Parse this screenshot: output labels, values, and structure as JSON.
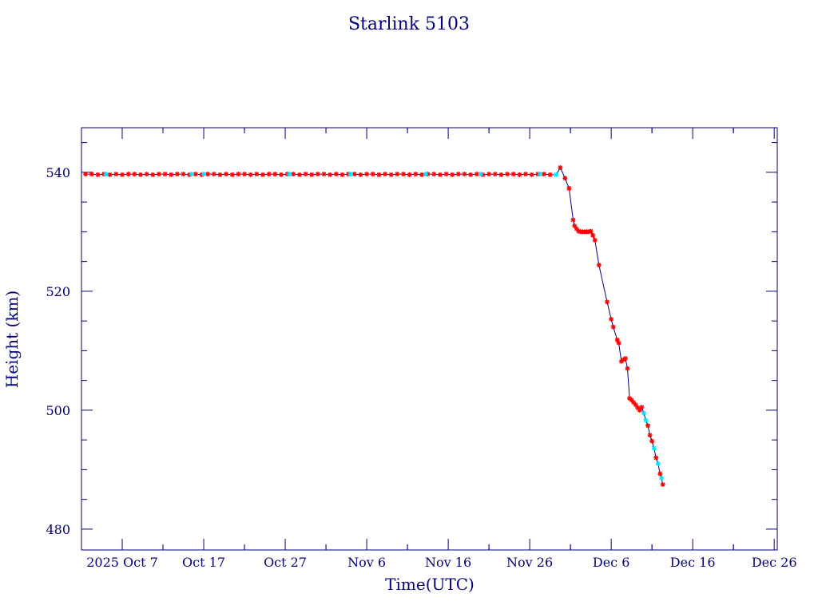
{
  "chart_data": {
    "type": "scatter",
    "title": "Starlink 5103",
    "xlabel": "Time(UTC)",
    "ylabel": "Height (km)",
    "xlim": [
      "2025-10-02",
      "2025-12-26T09:00"
    ],
    "ylim": [
      476.5,
      547.5
    ],
    "grid": false,
    "x_ticks": [
      {
        "date": "2025-10-07",
        "label": "2025 Oct  7"
      },
      {
        "date": "2025-10-17",
        "label": "Oct 17"
      },
      {
        "date": "2025-10-27",
        "label": "Oct 27"
      },
      {
        "date": "2025-11-06",
        "label": "Nov  6"
      },
      {
        "date": "2025-11-16",
        "label": "Nov 16"
      },
      {
        "date": "2025-11-26",
        "label": "Nov 26"
      },
      {
        "date": "2025-12-06",
        "label": "Dec  6"
      },
      {
        "date": "2025-12-16",
        "label": "Dec 16"
      },
      {
        "date": "2025-12-26",
        "label": "Dec 26"
      }
    ],
    "y_ticks": [
      {
        "value": 480,
        "label": "480"
      },
      {
        "value": 500,
        "label": "500"
      },
      {
        "value": 520,
        "label": "520"
      },
      {
        "value": 540,
        "label": "540"
      }
    ],
    "colors": {
      "frame": "#000080",
      "line": "#000080",
      "red_markers": "#ff0000",
      "cyan_markers": "#00e5ff"
    },
    "series": [
      {
        "color": "red",
        "marker": "star",
        "points": [
          {
            "t": "2025-10-02T12:00",
            "h": 539.7
          },
          {
            "t": "2025-10-03T06:00",
            "h": 539.7
          },
          {
            "t": "2025-10-04T00:00",
            "h": 539.6
          },
          {
            "t": "2025-10-04T18:00",
            "h": 539.7
          },
          {
            "t": "2025-10-05T12:00",
            "h": 539.6
          },
          {
            "t": "2025-10-06T06:00",
            "h": 539.7
          },
          {
            "t": "2025-10-07T00:00",
            "h": 539.6
          },
          {
            "t": "2025-10-07T18:00",
            "h": 539.7
          },
          {
            "t": "2025-10-08T12:00",
            "h": 539.7
          },
          {
            "t": "2025-10-09T06:00",
            "h": 539.6
          },
          {
            "t": "2025-10-10T00:00",
            "h": 539.7
          },
          {
            "t": "2025-10-10T18:00",
            "h": 539.6
          },
          {
            "t": "2025-10-11T12:00",
            "h": 539.7
          },
          {
            "t": "2025-10-12T06:00",
            "h": 539.7
          },
          {
            "t": "2025-10-13T00:00",
            "h": 539.6
          },
          {
            "t": "2025-10-13T18:00",
            "h": 539.7
          },
          {
            "t": "2025-10-14T12:00",
            "h": 539.7
          },
          {
            "t": "2025-10-15T06:00",
            "h": 539.6
          },
          {
            "t": "2025-10-16T00:00",
            "h": 539.7
          },
          {
            "t": "2025-10-16T18:00",
            "h": 539.6
          },
          {
            "t": "2025-10-17T12:00",
            "h": 539.7
          },
          {
            "t": "2025-10-18T06:00",
            "h": 539.7
          },
          {
            "t": "2025-10-19T00:00",
            "h": 539.6
          },
          {
            "t": "2025-10-19T18:00",
            "h": 539.7
          },
          {
            "t": "2025-10-20T12:00",
            "h": 539.6
          },
          {
            "t": "2025-10-21T06:00",
            "h": 539.7
          },
          {
            "t": "2025-10-22T00:00",
            "h": 539.7
          },
          {
            "t": "2025-10-22T18:00",
            "h": 539.6
          },
          {
            "t": "2025-10-23T12:00",
            "h": 539.7
          },
          {
            "t": "2025-10-24T06:00",
            "h": 539.6
          },
          {
            "t": "2025-10-25T00:00",
            "h": 539.7
          },
          {
            "t": "2025-10-25T18:00",
            "h": 539.7
          },
          {
            "t": "2025-10-26T12:00",
            "h": 539.6
          },
          {
            "t": "2025-10-27T06:00",
            "h": 539.7
          },
          {
            "t": "2025-10-28T00:00",
            "h": 539.7
          },
          {
            "t": "2025-10-28T18:00",
            "h": 539.6
          },
          {
            "t": "2025-10-29T12:00",
            "h": 539.7
          },
          {
            "t": "2025-10-30T06:00",
            "h": 539.6
          },
          {
            "t": "2025-10-31T00:00",
            "h": 539.7
          },
          {
            "t": "2025-10-31T18:00",
            "h": 539.7
          },
          {
            "t": "2025-11-01T12:00",
            "h": 539.6
          },
          {
            "t": "2025-11-02T06:00",
            "h": 539.7
          },
          {
            "t": "2025-11-03T00:00",
            "h": 539.6
          },
          {
            "t": "2025-11-03T18:00",
            "h": 539.7
          },
          {
            "t": "2025-11-04T12:00",
            "h": 539.7
          },
          {
            "t": "2025-11-05T06:00",
            "h": 539.6
          },
          {
            "t": "2025-11-06T00:00",
            "h": 539.7
          },
          {
            "t": "2025-11-06T18:00",
            "h": 539.7
          },
          {
            "t": "2025-11-07T12:00",
            "h": 539.6
          },
          {
            "t": "2025-11-08T06:00",
            "h": 539.7
          },
          {
            "t": "2025-11-09T00:00",
            "h": 539.6
          },
          {
            "t": "2025-11-09T18:00",
            "h": 539.7
          },
          {
            "t": "2025-11-10T12:00",
            "h": 539.7
          },
          {
            "t": "2025-11-11T06:00",
            "h": 539.6
          },
          {
            "t": "2025-11-12T00:00",
            "h": 539.7
          },
          {
            "t": "2025-11-12T18:00",
            "h": 539.6
          },
          {
            "t": "2025-11-13T12:00",
            "h": 539.7
          },
          {
            "t": "2025-11-14T06:00",
            "h": 539.7
          },
          {
            "t": "2025-11-15T00:00",
            "h": 539.6
          },
          {
            "t": "2025-11-15T18:00",
            "h": 539.7
          },
          {
            "t": "2025-11-16T12:00",
            "h": 539.6
          },
          {
            "t": "2025-11-17T06:00",
            "h": 539.7
          },
          {
            "t": "2025-11-18T00:00",
            "h": 539.7
          },
          {
            "t": "2025-11-18T18:00",
            "h": 539.6
          },
          {
            "t": "2025-11-19T12:00",
            "h": 539.7
          },
          {
            "t": "2025-11-20T06:00",
            "h": 539.6
          },
          {
            "t": "2025-11-21T00:00",
            "h": 539.7
          },
          {
            "t": "2025-11-21T18:00",
            "h": 539.7
          },
          {
            "t": "2025-11-22T12:00",
            "h": 539.6
          },
          {
            "t": "2025-11-23T06:00",
            "h": 539.7
          },
          {
            "t": "2025-11-24T00:00",
            "h": 539.7
          },
          {
            "t": "2025-11-24T18:00",
            "h": 539.6
          },
          {
            "t": "2025-11-25T12:00",
            "h": 539.7
          },
          {
            "t": "2025-11-26T06:00",
            "h": 539.6
          },
          {
            "t": "2025-11-27T00:00",
            "h": 539.7
          },
          {
            "t": "2025-11-27T18:00",
            "h": 539.7
          },
          {
            "t": "2025-11-28T12:00",
            "h": 539.6
          },
          {
            "t": "2025-11-29T18:00",
            "h": 540.8
          },
          {
            "t": "2025-11-30T08:00",
            "h": 539.0
          },
          {
            "t": "2025-11-30T20:00",
            "h": 537.3
          },
          {
            "t": "2025-12-01T08:00",
            "h": 532.0
          },
          {
            "t": "2025-12-01T12:00",
            "h": 531.0
          },
          {
            "t": "2025-12-01T18:00",
            "h": 530.5
          },
          {
            "t": "2025-12-02T00:00",
            "h": 530.1
          },
          {
            "t": "2025-12-02T06:00",
            "h": 530.0
          },
          {
            "t": "2025-12-02T12:00",
            "h": 530.0
          },
          {
            "t": "2025-12-02T18:00",
            "h": 530.0
          },
          {
            "t": "2025-12-03T00:00",
            "h": 530.0
          },
          {
            "t": "2025-12-03T06:00",
            "h": 530.0
          },
          {
            "t": "2025-12-03T12:00",
            "h": 530.1
          },
          {
            "t": "2025-12-03T18:00",
            "h": 529.4
          },
          {
            "t": "2025-12-04T00:00",
            "h": 528.6
          },
          {
            "t": "2025-12-04T12:00",
            "h": 524.4
          },
          {
            "t": "2025-12-05T12:00",
            "h": 518.2
          },
          {
            "t": "2025-12-06T00:00",
            "h": 515.3
          },
          {
            "t": "2025-12-06T06:00",
            "h": 514.0
          },
          {
            "t": "2025-12-06T18:00",
            "h": 511.8
          },
          {
            "t": "2025-12-06T22:00",
            "h": 511.3
          },
          {
            "t": "2025-12-07T06:00",
            "h": 508.2
          },
          {
            "t": "2025-12-07T12:00",
            "h": 508.5
          },
          {
            "t": "2025-12-07T18:00",
            "h": 508.7
          },
          {
            "t": "2025-12-08T00:00",
            "h": 507.0
          },
          {
            "t": "2025-12-08T06:00",
            "h": 502.0
          },
          {
            "t": "2025-12-08T12:00",
            "h": 501.7
          },
          {
            "t": "2025-12-08T18:00",
            "h": 501.3
          },
          {
            "t": "2025-12-09T00:00",
            "h": 500.9
          },
          {
            "t": "2025-12-09T06:00",
            "h": 500.4
          },
          {
            "t": "2025-12-09T12:00",
            "h": 500.0
          },
          {
            "t": "2025-12-09T18:00",
            "h": 500.5
          },
          {
            "t": "2025-12-10T12:00",
            "h": 497.4
          },
          {
            "t": "2025-12-10T18:00",
            "h": 495.8
          },
          {
            "t": "2025-12-11T00:00",
            "h": 494.8
          },
          {
            "t": "2025-12-11T12:00",
            "h": 492.0
          },
          {
            "t": "2025-12-12T00:00",
            "h": 489.3
          },
          {
            "t": "2025-12-12T08:00",
            "h": 487.5
          }
        ]
      },
      {
        "color": "cyan",
        "marker": "star",
        "points": [
          {
            "t": "2025-10-05T00:00",
            "h": 539.7
          },
          {
            "t": "2025-10-15T12:00",
            "h": 539.7
          },
          {
            "t": "2025-10-17T00:00",
            "h": 539.7
          },
          {
            "t": "2025-10-27T12:00",
            "h": 539.7
          },
          {
            "t": "2025-11-04T00:00",
            "h": 539.7
          },
          {
            "t": "2025-11-13T06:00",
            "h": 539.7
          },
          {
            "t": "2025-11-20T00:00",
            "h": 539.7
          },
          {
            "t": "2025-11-27T06:00",
            "h": 539.7
          },
          {
            "t": "2025-11-29T06:00",
            "h": 539.6
          },
          {
            "t": "2025-12-10T00:00",
            "h": 499.5
          },
          {
            "t": "2025-12-10T06:00",
            "h": 498.3
          },
          {
            "t": "2025-12-11T06:00",
            "h": 493.6
          },
          {
            "t": "2025-12-11T18:00",
            "h": 491.0
          },
          {
            "t": "2025-12-12T04:00",
            "h": 488.6
          }
        ]
      }
    ]
  }
}
